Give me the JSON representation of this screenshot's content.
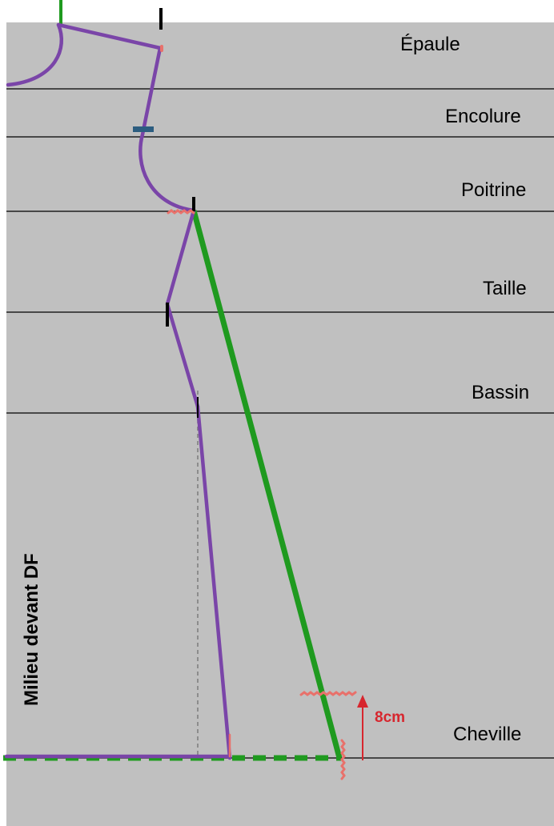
{
  "diagram": {
    "level_labels": {
      "epaule": "Épaule",
      "encolure": "Encolure",
      "poitrine": "Poitrine",
      "taille": "Taille",
      "bassin": "Bassin",
      "cheville": "Cheville"
    },
    "vertical_label": "Milieu devant DF",
    "measurement_label": "8cm"
  },
  "colors": {
    "background": "#c0c0c0",
    "pattern_line": "#7a45a8",
    "green_line": "#1f9a1f",
    "marker_red": "#e8716b",
    "arrow_red": "#d7262e",
    "notch_blue": "#2c5d80",
    "guide_black": "#000000",
    "dashed_guide": "#808080"
  }
}
